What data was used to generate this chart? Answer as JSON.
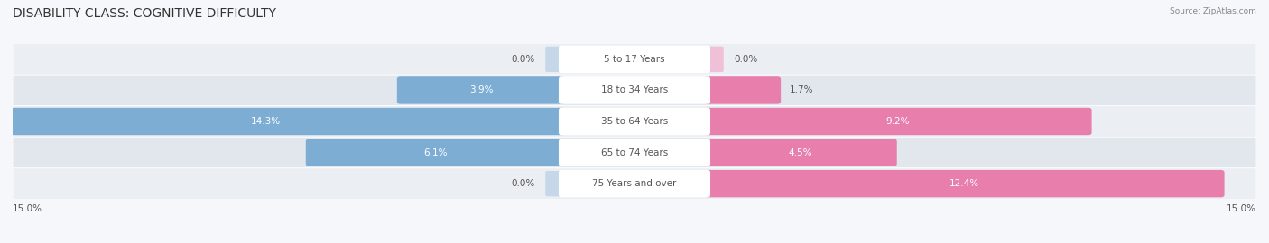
{
  "title": "DISABILITY CLASS: COGNITIVE DIFFICULTY",
  "source": "Source: ZipAtlas.com",
  "categories": [
    "5 to 17 Years",
    "18 to 34 Years",
    "35 to 64 Years",
    "65 to 74 Years",
    "75 Years and over"
  ],
  "male_values": [
    0.0,
    3.9,
    14.3,
    6.1,
    0.0
  ],
  "female_values": [
    0.0,
    1.7,
    9.2,
    4.5,
    12.4
  ],
  "max_val": 15.0,
  "male_color": "#7eadd4",
  "female_color": "#e87eab",
  "male_color_stub": "#c5d7e8",
  "female_color_stub": "#f0c0d8",
  "row_colors": [
    "#ebeef3",
    "#e2e7ee"
  ],
  "title_fontsize": 10,
  "label_fontsize": 7.5,
  "value_fontsize": 7.5,
  "axis_label_fontsize": 7.5,
  "bg_color": "#f5f7fa"
}
